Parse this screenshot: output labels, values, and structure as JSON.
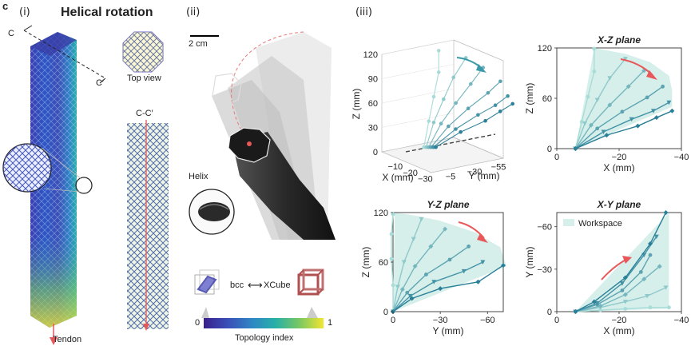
{
  "figure": {
    "label": "c",
    "panel_i": "(i)",
    "panel_ii": "(ii)",
    "panel_iii": "(iii)",
    "title": "Helical rotation"
  },
  "panel_i": {
    "c_top_left": "C",
    "c_top_right": "C′",
    "top_view": "Top view",
    "section": "C-C′",
    "tendon": "Tendon"
  },
  "panel_ii": {
    "scale_bar": "2 cm",
    "helix": "Helix",
    "bcc": "bcc",
    "xcube": "XCube",
    "arrow_glyph": "⟷",
    "colorbar_min": "0",
    "colorbar_max": "1",
    "colorbar_label": "Topology index",
    "colorbar_colors": [
      "#3a1f8c",
      "#3b4fb8",
      "#2f86c4",
      "#27b0a8",
      "#7ac862",
      "#f2e530"
    ]
  },
  "colors": {
    "series_dark": "#2a7f99",
    "series_light": "#a9dcd8",
    "workspace_fill": "#d6efea",
    "arrow": "#e8585a"
  },
  "chart_data": [
    {
      "id": "3d",
      "type": "line",
      "title": "",
      "xlabel": "X (mm)",
      "ylabel": "Y (mm)",
      "zlabel": "Z (mm)",
      "x_ticks": [
        "−10",
        "−20",
        "−30"
      ],
      "y_ticks": [
        "−5",
        "−30",
        "−55"
      ],
      "z_ticks": [
        "0",
        "30",
        "60",
        "90",
        "120"
      ],
      "zlim": [
        0,
        120
      ]
    },
    {
      "id": "xz",
      "type": "line",
      "title": "X-Z plane",
      "xlabel": "X (mm)",
      "ylabel": "Z (mm)",
      "xlim": [
        0,
        -40
      ],
      "ylim": [
        0,
        120
      ],
      "x_ticks": [
        "0",
        "−20",
        "−40"
      ],
      "y_ticks": [
        "0",
        "60",
        "120"
      ],
      "workspace": [
        [
          -6,
          0
        ],
        [
          -12,
          120
        ],
        [
          -22,
          113
        ],
        [
          -30,
          103
        ],
        [
          -36,
          87
        ],
        [
          -37,
          70
        ],
        [
          -37,
          50
        ],
        [
          -6,
          0
        ]
      ],
      "series": [
        {
          "points": [
            [
              -6,
              0
            ],
            [
              -8,
              32
            ],
            [
              -10,
              62
            ],
            [
              -12,
              92
            ],
            [
              -12,
              119
            ]
          ]
        },
        {
          "points": [
            [
              -6,
              0
            ],
            [
              -9,
              30
            ],
            [
              -13,
              58
            ],
            [
              -17,
              84
            ],
            [
              -22,
              107
            ]
          ]
        },
        {
          "points": [
            [
              -6,
              0
            ],
            [
              -11,
              28
            ],
            [
              -17,
              52
            ],
            [
              -23,
              74
            ],
            [
              -28,
              93
            ]
          ]
        },
        {
          "points": [
            [
              -6,
              0
            ],
            [
              -13,
              24
            ],
            [
              -21,
              44
            ],
            [
              -29,
              61
            ],
            [
              -34,
              74
            ]
          ]
        },
        {
          "points": [
            [
              -6,
              0
            ],
            [
              -15,
              20
            ],
            [
              -24,
              35
            ],
            [
              -31,
              45
            ],
            [
              -36,
              55
            ]
          ]
        },
        {
          "points": [
            [
              -6,
              0
            ],
            [
              -16,
              16
            ],
            [
              -26,
              27
            ],
            [
              -32,
              37
            ],
            [
              -37,
              45
            ]
          ]
        }
      ]
    },
    {
      "id": "yz",
      "type": "line",
      "title": "Y-Z plane",
      "xlabel": "Y (mm)",
      "ylabel": "Z (mm)",
      "xlim": [
        0,
        -70
      ],
      "ylim": [
        0,
        120
      ],
      "x_ticks": [
        "0",
        "−30",
        "−60"
      ],
      "y_ticks": [
        "0",
        "60",
        "120"
      ],
      "workspace": [
        [
          0,
          0
        ],
        [
          -1,
          120
        ],
        [
          -12,
          117
        ],
        [
          -30,
          110
        ],
        [
          -52,
          96
        ],
        [
          -68,
          78
        ],
        [
          -72,
          55
        ],
        [
          0,
          0
        ]
      ],
      "series": [
        {
          "points": [
            [
              0,
              0
            ],
            [
              0,
              32
            ],
            [
              1,
              64
            ],
            [
              1,
              94
            ],
            [
              0,
              118
            ]
          ]
        },
        {
          "points": [
            [
              0,
              0
            ],
            [
              -3,
              30
            ],
            [
              -7,
              60
            ],
            [
              -13,
              88
            ],
            [
              -18,
              112
            ]
          ]
        },
        {
          "points": [
            [
              0,
              0
            ],
            [
              -6,
              27
            ],
            [
              -14,
              55
            ],
            [
              -24,
              79
            ],
            [
              -33,
              100
            ]
          ]
        },
        {
          "points": [
            [
              0,
              0
            ],
            [
              -9,
              23
            ],
            [
              -21,
              45
            ],
            [
              -36,
              63
            ],
            [
              -48,
              79
            ]
          ]
        },
        {
          "points": [
            [
              0,
              0
            ],
            [
              -11,
              19
            ],
            [
              -26,
              36
            ],
            [
              -45,
              49
            ],
            [
              -57,
              60
            ]
          ]
        },
        {
          "points": [
            [
              0,
              0
            ],
            [
              -12,
              16
            ],
            [
              -30,
              28
            ],
            [
              -54,
              36
            ],
            [
              -70,
              56
            ]
          ]
        }
      ]
    },
    {
      "id": "xy",
      "type": "line",
      "title": "X-Y plane",
      "xlabel": "X (mm)",
      "ylabel": "Y (mm)",
      "xlim": [
        0,
        -40
      ],
      "ylim": [
        0,
        -70
      ],
      "x_ticks": [
        "0",
        "−20",
        "−40"
      ],
      "y_ticks": [
        "0",
        "−30",
        "−60"
      ],
      "legend": "Workspace",
      "legend_loc": "top-left",
      "workspace": [
        [
          -6,
          0
        ],
        [
          -36,
          -70
        ],
        [
          -36,
          -2
        ],
        [
          -6,
          0
        ]
      ],
      "series": [
        {
          "points": [
            [
              -6,
              0
            ],
            [
              -14,
              -1
            ],
            [
              -22,
              -2
            ],
            [
              -30,
              -3
            ],
            [
              -36,
              -3
            ]
          ]
        },
        {
          "points": [
            [
              -6,
              0
            ],
            [
              -14,
              -3
            ],
            [
              -22,
              -7
            ],
            [
              -29,
              -11
            ],
            [
              -35,
              -17
            ]
          ]
        },
        {
          "points": [
            [
              -6,
              0
            ],
            [
              -14,
              -4
            ],
            [
              -22,
              -12
            ],
            [
              -28,
              -23
            ],
            [
              -33,
              -32
            ]
          ]
        },
        {
          "points": [
            [
              -6,
              0
            ],
            [
              -13,
              -5
            ],
            [
              -21,
              -15
            ],
            [
              -27,
              -28
            ],
            [
              -30,
              -40
            ]
          ]
        },
        {
          "points": [
            [
              -6,
              0
            ],
            [
              -13,
              -6
            ],
            [
              -21,
              -20
            ],
            [
              -28,
              -40
            ],
            [
              -32,
              -53
            ]
          ]
        },
        {
          "points": [
            [
              -6,
              0
            ],
            [
              -12,
              -7
            ],
            [
              -22,
              -24
            ],
            [
              -30,
              -48
            ],
            [
              -35,
              -70
            ]
          ]
        }
      ]
    }
  ]
}
